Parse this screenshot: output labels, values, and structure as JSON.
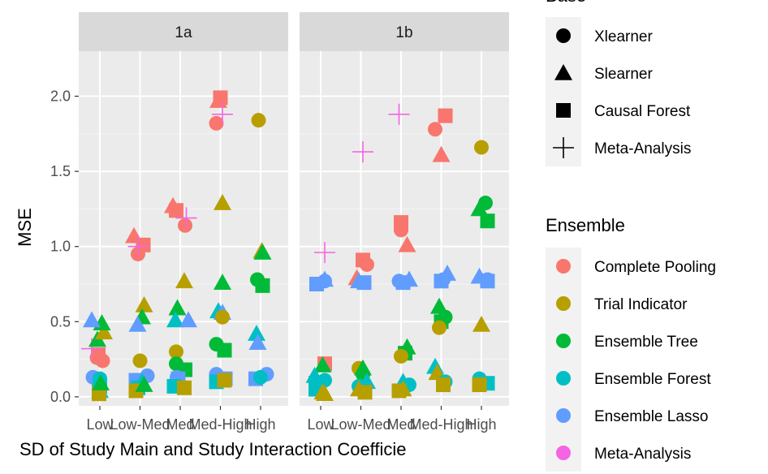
{
  "chart_data": {
    "type": "scatter",
    "facets": [
      "1a",
      "1b"
    ],
    "categories": [
      "Low",
      "Low-Med",
      "Med",
      "Med-High",
      "High"
    ],
    "xlabel": "SD of Study Main and Study Interaction Coefficie",
    "ylabel": "MSE",
    "ylim": [
      -0.06,
      2.3
    ],
    "yticks": [
      0.0,
      0.5,
      1.0,
      1.5,
      2.0
    ],
    "ytick_labels": [
      "0.0",
      "0.5",
      "1.0",
      "1.5",
      "2.0"
    ],
    "grid": true,
    "legend_position": "right",
    "base_legend": {
      "title": "Base",
      "items": [
        {
          "label": "Xlearner",
          "shape": "circle"
        },
        {
          "label": "Slearner",
          "shape": "triangle"
        },
        {
          "label": "Causal Forest",
          "shape": "square"
        },
        {
          "label": "Meta-Analysis",
          "shape": "cross"
        }
      ]
    },
    "ensemble_legend": {
      "title": "Ensemble",
      "items": [
        {
          "label": "Complete Pooling",
          "color": "#F8766D"
        },
        {
          "label": "Trial Indicator",
          "color": "#B79F00"
        },
        {
          "label": "Ensemble Tree",
          "color": "#00BA38"
        },
        {
          "label": "Ensemble Forest",
          "color": "#00BFC4"
        },
        {
          "label": "Ensemble Lasso",
          "color": "#619CFF"
        },
        {
          "label": "Meta-Analysis",
          "color": "#F564E3"
        }
      ]
    },
    "points": [
      {
        "f": 0,
        "x": 0,
        "jit": -0.07,
        "y": 0.26,
        "shape": "circle",
        "ens": 0
      },
      {
        "f": 0,
        "x": 0,
        "jit": -0.04,
        "y": 0.28,
        "shape": "square",
        "ens": 0
      },
      {
        "f": 0,
        "x": 0,
        "jit": 0.07,
        "y": 0.24,
        "shape": "circle",
        "ens": 0
      },
      {
        "f": 0,
        "x": 0,
        "jit": -0.2,
        "y": 0.32,
        "shape": "cross",
        "ens": 5
      },
      {
        "f": 0,
        "x": 0,
        "jit": -0.06,
        "y": 0.38,
        "shape": "triangle",
        "ens": 2
      },
      {
        "f": 0,
        "x": 0,
        "jit": 0.1,
        "y": 0.43,
        "shape": "triangle",
        "ens": 1
      },
      {
        "f": 0,
        "x": 0,
        "jit": 0.05,
        "y": 0.49,
        "shape": "triangle",
        "ens": 2
      },
      {
        "f": 0,
        "x": 0,
        "jit": -0.2,
        "y": 0.51,
        "shape": "triangle",
        "ens": 4
      },
      {
        "f": 0,
        "x": 0,
        "jit": -0.17,
        "y": 0.13,
        "shape": "circle",
        "ens": 4
      },
      {
        "f": 0,
        "x": 0,
        "jit": -0.02,
        "y": 0.1,
        "shape": "square",
        "ens": 4
      },
      {
        "f": 0,
        "x": 0,
        "jit": 0.0,
        "y": 0.12,
        "shape": "circle",
        "ens": 3
      },
      {
        "f": 0,
        "x": 0,
        "jit": 0.0,
        "y": 0.07,
        "shape": "square",
        "ens": 3
      },
      {
        "f": 0,
        "x": 0,
        "jit": 0.0,
        "y": 0.04,
        "shape": "triangle",
        "ens": 3
      },
      {
        "f": 0,
        "x": 0,
        "jit": -0.02,
        "y": 0.02,
        "shape": "square",
        "ens": 1
      },
      {
        "f": 0,
        "x": 0,
        "jit": 0.02,
        "y": 0.09,
        "shape": "triangle",
        "ens": 2
      },
      {
        "f": 0,
        "x": 1,
        "jit": -0.15,
        "y": 1.07,
        "shape": "triangle",
        "ens": 0
      },
      {
        "f": 0,
        "x": 1,
        "jit": 0.08,
        "y": 1.01,
        "shape": "square",
        "ens": 0
      },
      {
        "f": 0,
        "x": 1,
        "jit": -0.05,
        "y": 0.95,
        "shape": "circle",
        "ens": 0
      },
      {
        "f": 0,
        "x": 1,
        "jit": -0.04,
        "y": 1.0,
        "shape": "cross",
        "ens": 5
      },
      {
        "f": 0,
        "x": 1,
        "jit": 0.1,
        "y": 0.61,
        "shape": "triangle",
        "ens": 1
      },
      {
        "f": 0,
        "x": 1,
        "jit": 0.05,
        "y": 0.53,
        "shape": "triangle",
        "ens": 2
      },
      {
        "f": 0,
        "x": 1,
        "jit": -0.06,
        "y": 0.48,
        "shape": "triangle",
        "ens": 4
      },
      {
        "f": 0,
        "x": 1,
        "jit": 0.0,
        "y": 0.24,
        "shape": "circle",
        "ens": 1
      },
      {
        "f": 0,
        "x": 1,
        "jit": 0.18,
        "y": 0.14,
        "shape": "circle",
        "ens": 4
      },
      {
        "f": 0,
        "x": 1,
        "jit": -0.1,
        "y": 0.11,
        "shape": "square",
        "ens": 4
      },
      {
        "f": 0,
        "x": 1,
        "jit": 0.05,
        "y": 0.1,
        "shape": "triangle",
        "ens": 3
      },
      {
        "f": 0,
        "x": 1,
        "jit": -0.05,
        "y": 0.06,
        "shape": "square",
        "ens": 3
      },
      {
        "f": 0,
        "x": 1,
        "jit": -0.1,
        "y": 0.04,
        "shape": "square",
        "ens": 1
      },
      {
        "f": 0,
        "x": 1,
        "jit": 0.1,
        "y": 0.08,
        "shape": "triangle",
        "ens": 2
      },
      {
        "f": 0,
        "x": 2,
        "jit": -0.18,
        "y": 1.27,
        "shape": "triangle",
        "ens": 0
      },
      {
        "f": 0,
        "x": 2,
        "jit": -0.1,
        "y": 1.24,
        "shape": "square",
        "ens": 0
      },
      {
        "f": 0,
        "x": 2,
        "jit": 0.12,
        "y": 1.14,
        "shape": "circle",
        "ens": 0
      },
      {
        "f": 0,
        "x": 2,
        "jit": 0.15,
        "y": 1.19,
        "shape": "cross",
        "ens": 5
      },
      {
        "f": 0,
        "x": 2,
        "jit": 0.1,
        "y": 0.77,
        "shape": "triangle",
        "ens": 1
      },
      {
        "f": 0,
        "x": 2,
        "jit": -0.07,
        "y": 0.59,
        "shape": "triangle",
        "ens": 2
      },
      {
        "f": 0,
        "x": 2,
        "jit": -0.12,
        "y": 0.51,
        "shape": "triangle",
        "ens": 3
      },
      {
        "f": 0,
        "x": 2,
        "jit": 0.2,
        "y": 0.51,
        "shape": "triangle",
        "ens": 4
      },
      {
        "f": 0,
        "x": 2,
        "jit": -0.1,
        "y": 0.3,
        "shape": "circle",
        "ens": 1
      },
      {
        "f": 0,
        "x": 2,
        "jit": -0.1,
        "y": 0.22,
        "shape": "circle",
        "ens": 2
      },
      {
        "f": 0,
        "x": 2,
        "jit": 0.12,
        "y": 0.18,
        "shape": "square",
        "ens": 2
      },
      {
        "f": 0,
        "x": 2,
        "jit": -0.08,
        "y": 0.13,
        "shape": "circle",
        "ens": 4
      },
      {
        "f": 0,
        "x": 2,
        "jit": -0.05,
        "y": 0.12,
        "shape": "square",
        "ens": 4
      },
      {
        "f": 0,
        "x": 2,
        "jit": -0.15,
        "y": 0.07,
        "shape": "square",
        "ens": 3
      },
      {
        "f": 0,
        "x": 2,
        "jit": 0.1,
        "y": 0.06,
        "shape": "square",
        "ens": 1
      },
      {
        "f": 0,
        "x": 3,
        "jit": -0.05,
        "y": 1.97,
        "shape": "triangle",
        "ens": 0
      },
      {
        "f": 0,
        "x": 3,
        "jit": 0.0,
        "y": 1.99,
        "shape": "square",
        "ens": 0
      },
      {
        "f": 0,
        "x": 3,
        "jit": -0.1,
        "y": 1.82,
        "shape": "circle",
        "ens": 0
      },
      {
        "f": 0,
        "x": 3,
        "jit": 0.05,
        "y": 1.88,
        "shape": "cross",
        "ens": 5
      },
      {
        "f": 0,
        "x": 3,
        "jit": 0.05,
        "y": 1.29,
        "shape": "triangle",
        "ens": 1
      },
      {
        "f": 0,
        "x": 3,
        "jit": 0.05,
        "y": 0.76,
        "shape": "triangle",
        "ens": 2
      },
      {
        "f": 0,
        "x": 3,
        "jit": -0.05,
        "y": 0.57,
        "shape": "triangle",
        "ens": 3
      },
      {
        "f": 0,
        "x": 3,
        "jit": 0.05,
        "y": 0.56,
        "shape": "triangle",
        "ens": 4
      },
      {
        "f": 0,
        "x": 3,
        "jit": 0.05,
        "y": 0.53,
        "shape": "circle",
        "ens": 1
      },
      {
        "f": 0,
        "x": 3,
        "jit": -0.1,
        "y": 0.35,
        "shape": "circle",
        "ens": 2
      },
      {
        "f": 0,
        "x": 3,
        "jit": 0.1,
        "y": 0.31,
        "shape": "square",
        "ens": 2
      },
      {
        "f": 0,
        "x": 3,
        "jit": -0.1,
        "y": 0.15,
        "shape": "circle",
        "ens": 4
      },
      {
        "f": 0,
        "x": 3,
        "jit": 0.12,
        "y": 0.12,
        "shape": "square",
        "ens": 4
      },
      {
        "f": 0,
        "x": 3,
        "jit": -0.1,
        "y": 0.1,
        "shape": "square",
        "ens": 3
      },
      {
        "f": 0,
        "x": 3,
        "jit": 0.1,
        "y": 0.11,
        "shape": "square",
        "ens": 1
      },
      {
        "f": 0,
        "x": 4,
        "jit": -0.05,
        "y": 1.84,
        "shape": "circle",
        "ens": 1
      },
      {
        "f": 0,
        "x": 4,
        "jit": 0.03,
        "y": 0.97,
        "shape": "triangle",
        "ens": 1
      },
      {
        "f": 0,
        "x": 4,
        "jit": 0.05,
        "y": 0.96,
        "shape": "triangle",
        "ens": 2
      },
      {
        "f": 0,
        "x": 4,
        "jit": -0.08,
        "y": 0.78,
        "shape": "circle",
        "ens": 2
      },
      {
        "f": 0,
        "x": 4,
        "jit": 0.05,
        "y": 0.74,
        "shape": "square",
        "ens": 2
      },
      {
        "f": 0,
        "x": 4,
        "jit": -0.1,
        "y": 0.42,
        "shape": "triangle",
        "ens": 3
      },
      {
        "f": 0,
        "x": 4,
        "jit": -0.07,
        "y": 0.36,
        "shape": "triangle",
        "ens": 4
      },
      {
        "f": 0,
        "x": 4,
        "jit": 0.15,
        "y": 0.15,
        "shape": "circle",
        "ens": 4
      },
      {
        "f": 0,
        "x": 4,
        "jit": -0.12,
        "y": 0.12,
        "shape": "square",
        "ens": 4
      },
      {
        "f": 0,
        "x": 4,
        "jit": 0.0,
        "y": 0.13,
        "shape": "circle",
        "ens": 3
      },
      {
        "f": 1,
        "x": 0,
        "jit": 0.1,
        "y": 0.96,
        "shape": "cross",
        "ens": 5
      },
      {
        "f": 1,
        "x": 0,
        "jit": -0.1,
        "y": 0.75,
        "shape": "square",
        "ens": 4
      },
      {
        "f": 1,
        "x": 0,
        "jit": 0.1,
        "y": 0.77,
        "shape": "circle",
        "ens": 4
      },
      {
        "f": 1,
        "x": 0,
        "jit": 0.1,
        "y": 0.78,
        "shape": "triangle",
        "ens": 4
      },
      {
        "f": 1,
        "x": 0,
        "jit": 0.1,
        "y": 0.22,
        "shape": "square",
        "ens": 0
      },
      {
        "f": 1,
        "x": 0,
        "jit": 0.05,
        "y": 0.21,
        "shape": "triangle",
        "ens": 2
      },
      {
        "f": 1,
        "x": 0,
        "jit": -0.15,
        "y": 0.14,
        "shape": "triangle",
        "ens": 3
      },
      {
        "f": 1,
        "x": 0,
        "jit": 0.1,
        "y": 0.11,
        "shape": "circle",
        "ens": 3
      },
      {
        "f": 1,
        "x": 0,
        "jit": -0.12,
        "y": 0.09,
        "shape": "square",
        "ens": 3
      },
      {
        "f": 1,
        "x": 0,
        "jit": -0.12,
        "y": 0.05,
        "shape": "square",
        "ens": 3
      },
      {
        "f": 1,
        "x": 0,
        "jit": 0.05,
        "y": 0.03,
        "shape": "triangle",
        "ens": 1
      },
      {
        "f": 1,
        "x": 0,
        "jit": 0.1,
        "y": 0.02,
        "shape": "triangle",
        "ens": 1
      },
      {
        "f": 1,
        "x": 1,
        "jit": -0.1,
        "y": 0.79,
        "shape": "triangle",
        "ens": 0
      },
      {
        "f": 1,
        "x": 1,
        "jit": 0.05,
        "y": 0.91,
        "shape": "square",
        "ens": 0
      },
      {
        "f": 1,
        "x": 1,
        "jit": 0.15,
        "y": 0.88,
        "shape": "circle",
        "ens": 0
      },
      {
        "f": 1,
        "x": 1,
        "jit": -0.05,
        "y": 0.77,
        "shape": "triangle",
        "ens": 4
      },
      {
        "f": 1,
        "x": 1,
        "jit": 0.08,
        "y": 0.76,
        "shape": "square",
        "ens": 4
      },
      {
        "f": 1,
        "x": 1,
        "jit": 0.05,
        "y": 1.63,
        "shape": "cross",
        "ens": 5
      },
      {
        "f": 1,
        "x": 1,
        "jit": -0.05,
        "y": 0.19,
        "shape": "circle",
        "ens": 1
      },
      {
        "f": 1,
        "x": 1,
        "jit": 0.05,
        "y": 0.19,
        "shape": "triangle",
        "ens": 2
      },
      {
        "f": 1,
        "x": 1,
        "jit": 0.05,
        "y": 0.15,
        "shape": "circle",
        "ens": 2
      },
      {
        "f": 1,
        "x": 1,
        "jit": 0.15,
        "y": 0.1,
        "shape": "triangle",
        "ens": 3
      },
      {
        "f": 1,
        "x": 1,
        "jit": -0.05,
        "y": 0.07,
        "shape": "circle",
        "ens": 3
      },
      {
        "f": 1,
        "x": 1,
        "jit": -0.05,
        "y": 0.05,
        "shape": "triangle",
        "ens": 1
      },
      {
        "f": 1,
        "x": 1,
        "jit": 0.1,
        "y": 0.03,
        "shape": "square",
        "ens": 1
      },
      {
        "f": 1,
        "x": 2,
        "jit": -0.05,
        "y": 1.88,
        "shape": "cross",
        "ens": 5
      },
      {
        "f": 1,
        "x": 2,
        "jit": 0.0,
        "y": 1.16,
        "shape": "square",
        "ens": 0
      },
      {
        "f": 1,
        "x": 2,
        "jit": 0.0,
        "y": 1.11,
        "shape": "circle",
        "ens": 0
      },
      {
        "f": 1,
        "x": 2,
        "jit": 0.15,
        "y": 1.01,
        "shape": "triangle",
        "ens": 0
      },
      {
        "f": 1,
        "x": 2,
        "jit": -0.05,
        "y": 0.77,
        "shape": "circle",
        "ens": 4
      },
      {
        "f": 1,
        "x": 2,
        "jit": 0.05,
        "y": 0.76,
        "shape": "square",
        "ens": 4
      },
      {
        "f": 1,
        "x": 2,
        "jit": 0.2,
        "y": 0.78,
        "shape": "triangle",
        "ens": 4
      },
      {
        "f": 1,
        "x": 2,
        "jit": 0.15,
        "y": 0.33,
        "shape": "triangle",
        "ens": 2
      },
      {
        "f": 1,
        "x": 2,
        "jit": 0.1,
        "y": 0.29,
        "shape": "square",
        "ens": 2
      },
      {
        "f": 1,
        "x": 2,
        "jit": 0.0,
        "y": 0.27,
        "shape": "circle",
        "ens": 1
      },
      {
        "f": 1,
        "x": 2,
        "jit": 0.05,
        "y": 0.1,
        "shape": "triangle",
        "ens": 3
      },
      {
        "f": 1,
        "x": 2,
        "jit": 0.2,
        "y": 0.08,
        "shape": "circle",
        "ens": 3
      },
      {
        "f": 1,
        "x": 2,
        "jit": -0.05,
        "y": 0.04,
        "shape": "square",
        "ens": 1
      },
      {
        "f": 1,
        "x": 2,
        "jit": 0.05,
        "y": 0.05,
        "shape": "triangle",
        "ens": 1
      },
      {
        "f": 1,
        "x": 3,
        "jit": -0.15,
        "y": 1.78,
        "shape": "circle",
        "ens": 0
      },
      {
        "f": 1,
        "x": 3,
        "jit": 0.1,
        "y": 1.87,
        "shape": "square",
        "ens": 0
      },
      {
        "f": 1,
        "x": 3,
        "jit": 0.0,
        "y": 1.61,
        "shape": "triangle",
        "ens": 0
      },
      {
        "f": 1,
        "x": 3,
        "jit": 0.15,
        "y": 0.82,
        "shape": "triangle",
        "ens": 4
      },
      {
        "f": 1,
        "x": 3,
        "jit": 0.05,
        "y": 0.78,
        "shape": "circle",
        "ens": 4
      },
      {
        "f": 1,
        "x": 3,
        "jit": 0.0,
        "y": 0.77,
        "shape": "square",
        "ens": 4
      },
      {
        "f": 1,
        "x": 3,
        "jit": -0.05,
        "y": 0.6,
        "shape": "triangle",
        "ens": 2
      },
      {
        "f": 1,
        "x": 3,
        "jit": 0.1,
        "y": 0.53,
        "shape": "circle",
        "ens": 2
      },
      {
        "f": 1,
        "x": 3,
        "jit": 0.0,
        "y": 0.5,
        "shape": "square",
        "ens": 2
      },
      {
        "f": 1,
        "x": 3,
        "jit": -0.05,
        "y": 0.46,
        "shape": "circle",
        "ens": 1
      },
      {
        "f": 1,
        "x": 3,
        "jit": -0.15,
        "y": 0.2,
        "shape": "triangle",
        "ens": 3
      },
      {
        "f": 1,
        "x": 3,
        "jit": -0.1,
        "y": 0.16,
        "shape": "triangle",
        "ens": 1
      },
      {
        "f": 1,
        "x": 3,
        "jit": 0.1,
        "y": 0.1,
        "shape": "circle",
        "ens": 3
      },
      {
        "f": 1,
        "x": 3,
        "jit": 0.05,
        "y": 0.08,
        "shape": "square",
        "ens": 1
      },
      {
        "f": 1,
        "x": 4,
        "jit": 0.0,
        "y": 1.66,
        "shape": "circle",
        "ens": 1
      },
      {
        "f": 1,
        "x": 4,
        "jit": -0.05,
        "y": 1.25,
        "shape": "triangle",
        "ens": 2
      },
      {
        "f": 1,
        "x": 4,
        "jit": 0.1,
        "y": 1.29,
        "shape": "circle",
        "ens": 2
      },
      {
        "f": 1,
        "x": 4,
        "jit": 0.15,
        "y": 1.17,
        "shape": "square",
        "ens": 2
      },
      {
        "f": 1,
        "x": 4,
        "jit": -0.05,
        "y": 0.8,
        "shape": "triangle",
        "ens": 4
      },
      {
        "f": 1,
        "x": 4,
        "jit": 0.15,
        "y": 0.78,
        "shape": "circle",
        "ens": 4
      },
      {
        "f": 1,
        "x": 4,
        "jit": 0.15,
        "y": 0.77,
        "shape": "square",
        "ens": 4
      },
      {
        "f": 1,
        "x": 4,
        "jit": 0.0,
        "y": 0.48,
        "shape": "triangle",
        "ens": 1
      },
      {
        "f": 1,
        "x": 4,
        "jit": -0.05,
        "y": 0.12,
        "shape": "circle",
        "ens": 3
      },
      {
        "f": 1,
        "x": 4,
        "jit": 0.15,
        "y": 0.09,
        "shape": "square",
        "ens": 3
      },
      {
        "f": 1,
        "x": 4,
        "jit": -0.05,
        "y": 0.08,
        "shape": "square",
        "ens": 1
      }
    ]
  }
}
